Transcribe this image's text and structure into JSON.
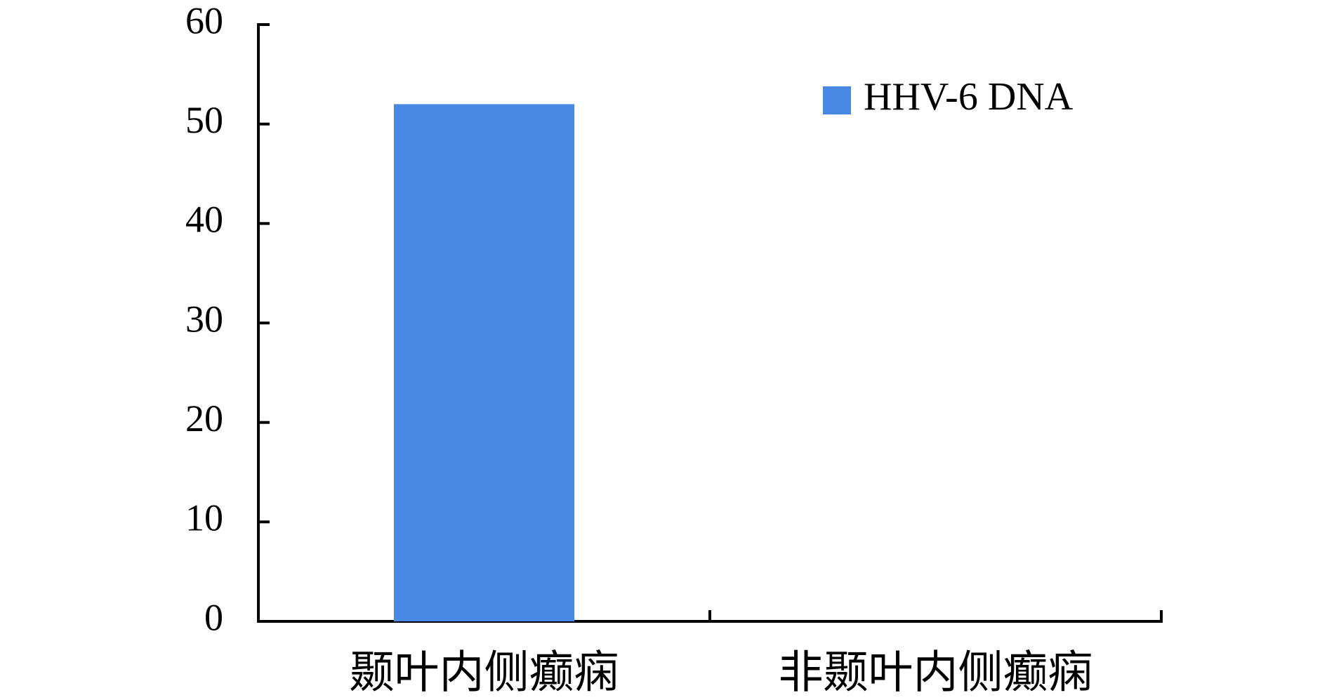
{
  "chart_data": {
    "type": "bar",
    "categories": [
      "颞叶内侧癫痫",
      "非颞叶内侧癫痫"
    ],
    "series": [
      {
        "name": "HHV-6 DNA",
        "color": "#4a89e3",
        "values": [
          52,
          0
        ]
      }
    ],
    "ylim": [
      0,
      60
    ],
    "yticks": [
      0,
      10,
      20,
      30,
      40,
      50,
      60
    ],
    "grid": false,
    "legend": "top-right"
  }
}
